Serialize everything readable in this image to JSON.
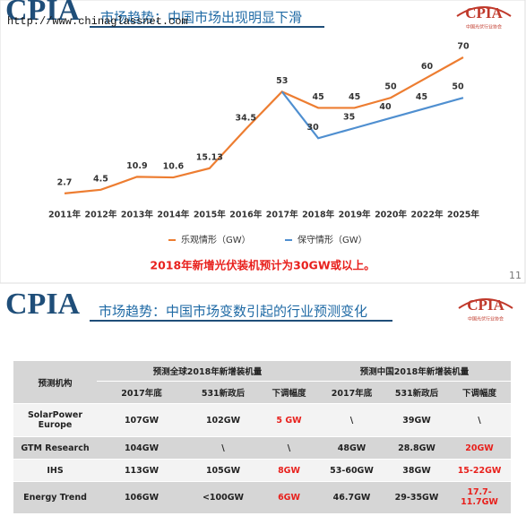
{
  "slide1": {
    "logo": "CPIA",
    "title": "市场趋势：中国市场出现明显下滑",
    "watermark": "http://www.chinaglassnet.com",
    "badge": "CPIA",
    "badge_sub": "中国光伏行业协会",
    "note": "2018年新增光伏装机预计为30GW或以上。",
    "page_number": "11"
  },
  "chart_data": {
    "type": "line",
    "categories": [
      "2011年",
      "2012年",
      "2013年",
      "2014年",
      "2015年",
      "2016年",
      "2017年",
      "2018年",
      "2019年",
      "2020年",
      "2022年",
      "2025年"
    ],
    "series": [
      {
        "name": "乐观情形（GW）",
        "color": "#ed7d31",
        "values": [
          2.7,
          4.5,
          10.9,
          10.6,
          15.13,
          34.5,
          53,
          45,
          45,
          50,
          60,
          70
        ]
      },
      {
        "name": "保守情形（GW）",
        "color": "#4f8fd0",
        "values": [
          null,
          null,
          null,
          null,
          null,
          null,
          53,
          30,
          35,
          40,
          45,
          50
        ]
      }
    ]
  },
  "slide2": {
    "logo": "CPIA",
    "title": "市场趋势：中国市场变数引起的行业预测变化",
    "badge": "CPIA",
    "badge_sub": "中国光伏行业协会"
  },
  "table": {
    "corner": "预测机构",
    "groups": [
      "预测全球2018年新增装机量",
      "预测中国2018年新增装机量"
    ],
    "columns": [
      "2017年底",
      "531新政后",
      "下调幅度",
      "2017年底",
      "531新政后",
      "下调幅度"
    ],
    "rows": [
      [
        "SolarPower Europe",
        "107GW",
        "102GW",
        "5 GW",
        "\\",
        "39GW",
        "\\"
      ],
      [
        "GTM Research",
        "104GW",
        "\\",
        "\\",
        "48GW",
        "28.8GW",
        "20GW"
      ],
      [
        "IHS",
        "113GW",
        "105GW",
        "8GW",
        "53-60GW",
        "38GW",
        "15-22GW"
      ],
      [
        "Energy Trend",
        "106GW",
        "<100GW",
        "6GW",
        "46.7GW",
        "29-35GW",
        "17.7-11.7GW"
      ]
    ]
  }
}
